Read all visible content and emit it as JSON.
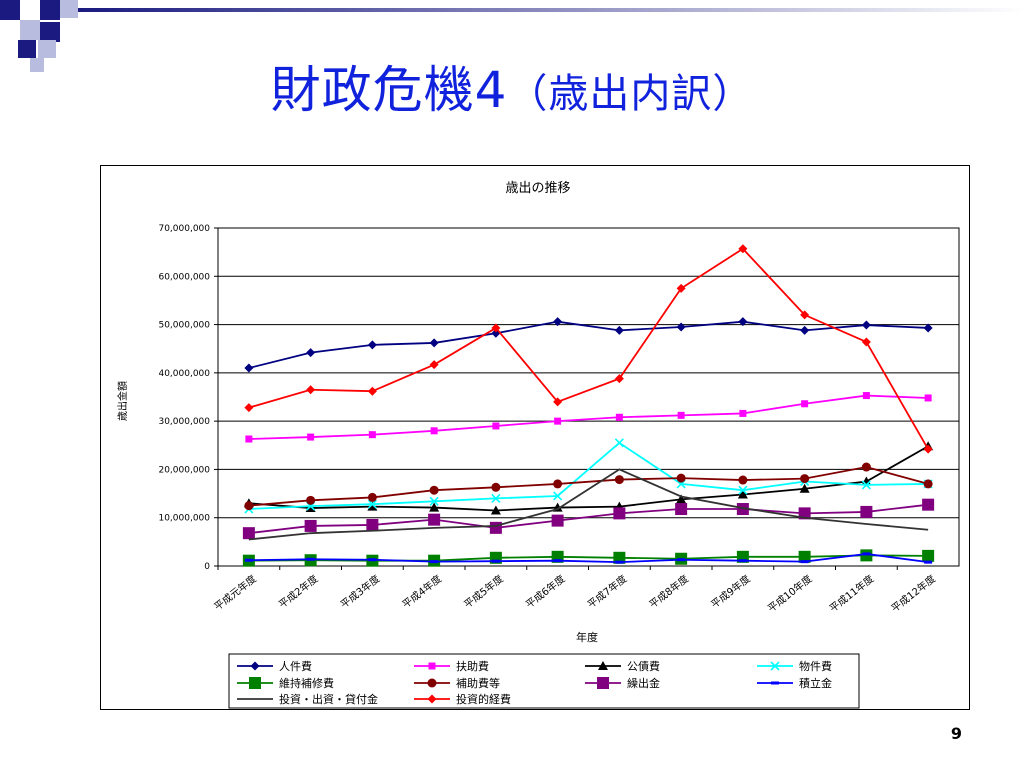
{
  "slide": {
    "title_main": "財政危機4",
    "title_sub": "（歳出内訳）",
    "page_number": "9",
    "accent_color": "#1122dd"
  },
  "chart_data": {
    "type": "line",
    "title": "歳出の推移",
    "xlabel": "年度",
    "ylabel": "歳出金額",
    "categories": [
      "平成元年度",
      "平成2年度",
      "平成3年度",
      "平成4年度",
      "平成5年度",
      "平成6年度",
      "平成7年度",
      "平成8年度",
      "平成9年度",
      "平成10年度",
      "平成11年度",
      "平成12年度"
    ],
    "ylim": [
      0,
      70000000
    ],
    "yticks": [
      0,
      10000000,
      20000000,
      30000000,
      40000000,
      50000000,
      60000000,
      70000000
    ],
    "ytick_labels": [
      "0",
      "10,000,000",
      "20,000,000",
      "30,000,000",
      "40,000,000",
      "50,000,000",
      "60,000,000",
      "70,000,000"
    ],
    "grid": "horizontal",
    "legend_position": "bottom",
    "series": [
      {
        "name": "人件費",
        "color": "#000080",
        "marker": "diamond",
        "values": [
          41000000,
          44200000,
          45800000,
          46200000,
          48200000,
          50600000,
          48800000,
          49500000,
          50600000,
          48800000,
          49900000,
          49300000
        ]
      },
      {
        "name": "扶助費",
        "color": "#ff00ff",
        "marker": "square",
        "values": [
          26300000,
          26700000,
          27200000,
          28000000,
          29000000,
          30000000,
          30800000,
          31200000,
          31600000,
          33600000,
          35300000,
          34800000
        ]
      },
      {
        "name": "公債費",
        "color": "#000000",
        "marker": "triangle",
        "values": [
          13000000,
          12000000,
          12300000,
          12100000,
          11500000,
          12100000,
          12300000,
          13800000,
          14800000,
          16000000,
          17500000,
          24800000
        ]
      },
      {
        "name": "物件費",
        "color": "#00ffff",
        "marker": "x",
        "values": [
          11800000,
          12400000,
          12800000,
          13400000,
          14000000,
          14500000,
          25500000,
          17000000,
          15700000,
          17500000,
          16800000,
          17000000
        ]
      },
      {
        "name": "維持補修費",
        "color": "#008000",
        "marker": "bigsquare",
        "values": [
          1100000,
          1200000,
          1100000,
          1100000,
          1700000,
          1900000,
          1700000,
          1500000,
          1900000,
          1900000,
          2200000,
          2100000
        ]
      },
      {
        "name": "補助費等",
        "color": "#800000",
        "marker": "circle",
        "values": [
          12500000,
          13600000,
          14200000,
          15700000,
          16300000,
          17000000,
          17900000,
          18200000,
          17800000,
          18100000,
          20500000,
          17000000
        ]
      },
      {
        "name": "繰出金",
        "color": "#800080",
        "marker": "bigsquare",
        "values": [
          6800000,
          8300000,
          8500000,
          9600000,
          7900000,
          9400000,
          10900000,
          11800000,
          11800000,
          10900000,
          11200000,
          12700000
        ]
      },
      {
        "name": "積立金",
        "color": "#0000ff",
        "marker": "dash",
        "values": [
          1200000,
          1400000,
          1300000,
          900000,
          1000000,
          1100000,
          800000,
          1300000,
          1100000,
          900000,
          2500000,
          800000
        ]
      },
      {
        "name": "投資・出資・貸付金",
        "color": "#333333",
        "marker": "none",
        "values": [
          5500000,
          6800000,
          7300000,
          7900000,
          8300000,
          11800000,
          20000000,
          14400000,
          12000000,
          10000000,
          8700000,
          7500000
        ]
      },
      {
        "name": "投資的経費",
        "color": "#ff0000",
        "marker": "diamond",
        "values": [
          32800000,
          36500000,
          36200000,
          41700000,
          49300000,
          34000000,
          38800000,
          57500000,
          65700000,
          52000000,
          46400000,
          24200000
        ]
      }
    ]
  }
}
